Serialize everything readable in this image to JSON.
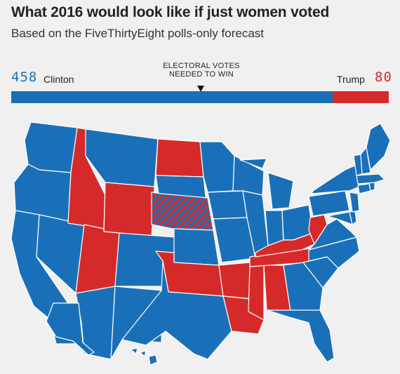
{
  "title": "What 2016 would look like if just women voted",
  "subtitle": "Based on the FiveThirtyEight polls-only forecast",
  "electoral_bar": {
    "needed_label": "ELECTORAL VOTES NEEDED TO WIN",
    "needed_label_line1": "ELECTORAL VOTES",
    "needed_label_line2": "NEEDED TO WIN",
    "needed_to_win": 270,
    "total": 538,
    "clinton": {
      "name": "Clinton",
      "votes": 458,
      "votes_text": "458",
      "color": "#1a70b8"
    },
    "trump": {
      "name": "Trump",
      "votes": 80,
      "votes_text": "80",
      "color": "#d62a2a"
    }
  },
  "colors": {
    "clinton": "#1a70b8",
    "trump": "#d62a2a",
    "split_pattern": "diagonal-stripes",
    "background": "#f0f0f0"
  },
  "map": {
    "winner_by_state": {
      "clinton": [
        "WA",
        "OR",
        "CA",
        "NV",
        "AZ",
        "NM",
        "CO",
        "MT",
        "TX",
        "MN",
        "IA",
        "MO",
        "WI",
        "IL",
        "MI",
        "IN",
        "OH",
        "PA",
        "NY",
        "VT",
        "NH",
        "ME",
        "MA",
        "CT",
        "RI",
        "NJ",
        "DE",
        "MD",
        "VA",
        "NC",
        "SC",
        "GA",
        "FL",
        "AK",
        "HI",
        "KS",
        "SD"
      ],
      "trump": [
        "ID",
        "WY",
        "UT",
        "ND",
        "OK",
        "AR",
        "LA",
        "MS",
        "AL",
        "TN",
        "KY",
        "WV"
      ],
      "split": [
        "NE"
      ]
    }
  }
}
